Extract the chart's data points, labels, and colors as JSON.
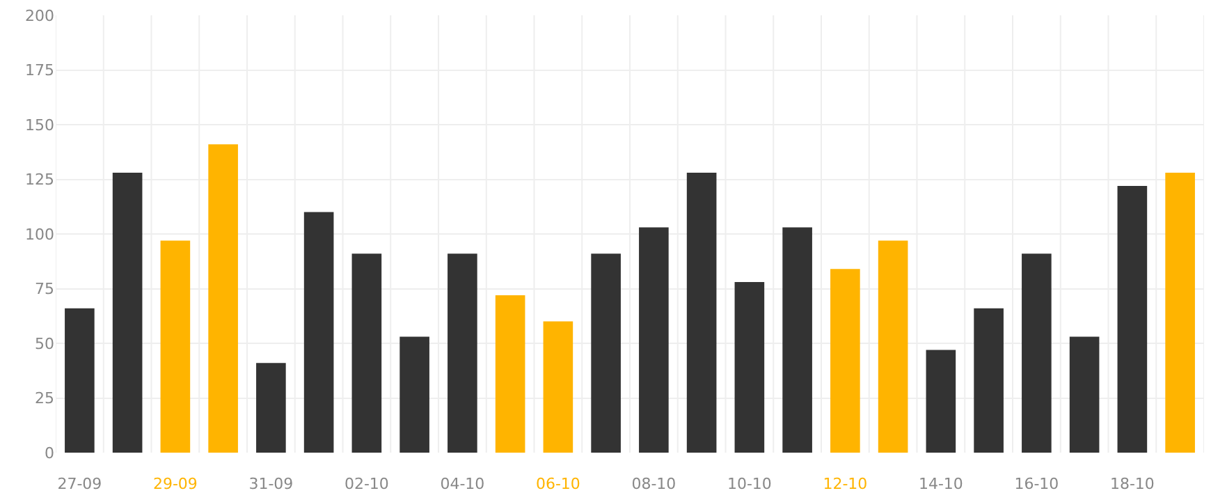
{
  "chart_data": {
    "type": "bar",
    "categories": [
      "27-09",
      null,
      "29-09",
      null,
      "31-09",
      null,
      "02-10",
      null,
      "04-10",
      null,
      "06-10",
      null,
      "08-10",
      null,
      "10-10",
      null,
      "12-10",
      null,
      "14-10",
      null,
      "16-10",
      null,
      "18-10",
      null
    ],
    "values": [
      66,
      128,
      97,
      141,
      41,
      110,
      91,
      53,
      91,
      72,
      60,
      91,
      103,
      128,
      78,
      103,
      84,
      97,
      47,
      66,
      91,
      53,
      122,
      128
    ],
    "colors": [
      "#333333",
      "#333333",
      "#ffb400",
      "#ffb400",
      "#333333",
      "#333333",
      "#333333",
      "#333333",
      "#333333",
      "#ffb400",
      "#ffb400",
      "#333333",
      "#333333",
      "#333333",
      "#333333",
      "#333333",
      "#ffb400",
      "#ffb400",
      "#333333",
      "#333333",
      "#333333",
      "#333333",
      "#333333",
      "#ffb400"
    ],
    "ylim": [
      0,
      200
    ],
    "yticks": [
      0,
      25,
      50,
      75,
      100,
      125,
      150,
      175,
      200
    ],
    "grid": true
  }
}
